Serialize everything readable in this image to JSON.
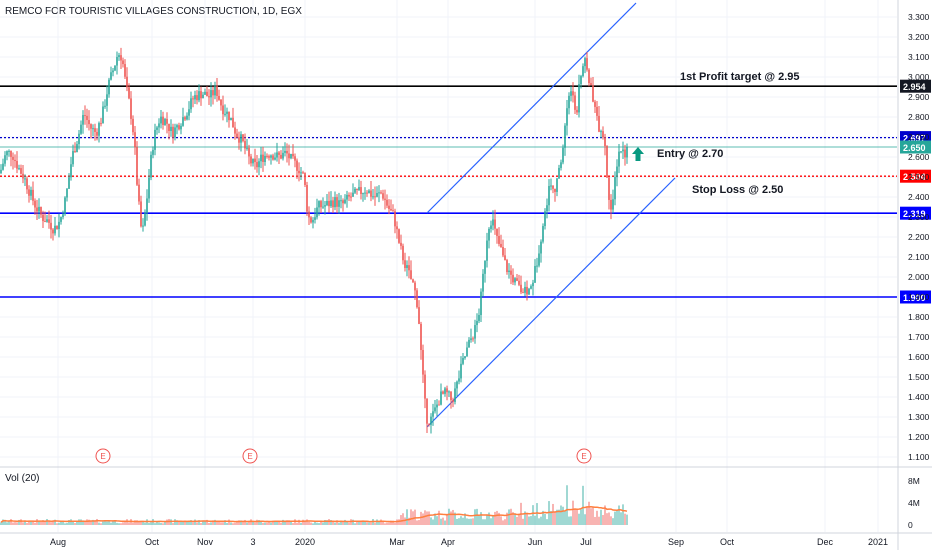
{
  "header": {
    "title": "REMCO FOR TOURISTIC VILLAGES CONSTRUCTION, 1D, EGX"
  },
  "colors": {
    "up": "#26a69a",
    "down": "#ef5350",
    "resistance_line": "#000000",
    "level_line": "#0000ff",
    "entry_dotted": "#0000cc",
    "stop_dotted": "#ff0000",
    "entry_thin": "#26a69a",
    "channel": "#2962ff",
    "vol_ma": "#ff7f3f",
    "arrow": "#089981"
  },
  "chart_data": {
    "type": "candlestick",
    "symbol": "REMCO FOR TOURISTIC VILLAGES CONSTRUCTION",
    "interval": "1D",
    "exchange": "EGX",
    "y_axis": {
      "range": [
        1.1,
        3.35
      ],
      "tick_labels": [
        "3.300",
        "3.200",
        "3.100",
        "3.000",
        "2.900",
        "2.800",
        "2.700",
        "2.600",
        "2.500",
        "2.400",
        "2.300",
        "2.200",
        "2.100",
        "2.000",
        "1.900",
        "1.800",
        "1.700",
        "1.600",
        "1.500",
        "1.400",
        "1.300",
        "1.200",
        "1.100"
      ]
    },
    "x_axis": {
      "tick_labels": [
        "Aug",
        "Oct",
        "Nov",
        "3",
        "2020",
        "Mar",
        "Apr",
        "Jun",
        "Jul",
        "Sep",
        "Oct",
        "Dec",
        "2021"
      ]
    },
    "horizontal_levels": [
      {
        "value": 2.954,
        "label": "2.954",
        "style": "solid-black"
      },
      {
        "value": 2.697,
        "label": "2.697",
        "style": "dotted-blue"
      },
      {
        "value": 2.65,
        "label": "2.650",
        "style": "thin-green"
      },
      {
        "value": 2.504,
        "label": "2.504",
        "style": "dotted-red"
      },
      {
        "value": 2.319,
        "label": "2.319",
        "style": "solid-blue"
      },
      {
        "value": 1.9,
        "label": "1.900",
        "style": "solid-blue"
      }
    ],
    "annotations": [
      {
        "text": "1st Profit target @ 2.95"
      },
      {
        "text": "Entry @ 2.70"
      },
      {
        "text": "Stop Loss @ 2.50"
      }
    ],
    "earnings_markers": [
      "E",
      "E",
      "E"
    ],
    "price_path": [
      [
        0,
        2.52
      ],
      [
        6,
        2.62
      ],
      [
        12,
        2.62
      ],
      [
        18,
        2.55
      ],
      [
        24,
        2.5
      ],
      [
        30,
        2.42
      ],
      [
        36,
        2.35
      ],
      [
        42,
        2.3
      ],
      [
        48,
        2.28
      ],
      [
        54,
        2.24
      ],
      [
        60,
        2.28
      ],
      [
        66,
        2.4
      ],
      [
        72,
        2.6
      ],
      [
        78,
        2.7
      ],
      [
        84,
        2.82
      ],
      [
        90,
        2.75
      ],
      [
        96,
        2.72
      ],
      [
        102,
        2.8
      ],
      [
        108,
        2.95
      ],
      [
        114,
        3.05
      ],
      [
        118,
        3.12
      ],
      [
        122,
        3.1
      ],
      [
        126,
        2.95
      ],
      [
        130,
        2.85
      ],
      [
        134,
        2.7
      ],
      [
        138,
        2.4
      ],
      [
        142,
        2.2
      ],
      [
        146,
        2.35
      ],
      [
        150,
        2.55
      ],
      [
        154,
        2.7
      ],
      [
        160,
        2.8
      ],
      [
        166,
        2.78
      ],
      [
        172,
        2.72
      ],
      [
        178,
        2.76
      ],
      [
        186,
        2.82
      ],
      [
        194,
        2.9
      ],
      [
        202,
        2.92
      ],
      [
        210,
        2.9
      ],
      [
        216,
        2.94
      ],
      [
        222,
        2.85
      ],
      [
        230,
        2.8
      ],
      [
        236,
        2.72
      ],
      [
        242,
        2.68
      ],
      [
        250,
        2.58
      ],
      [
        256,
        2.55
      ],
      [
        262,
        2.6
      ],
      [
        270,
        2.62
      ],
      [
        278,
        2.6
      ],
      [
        286,
        2.62
      ],
      [
        292,
        2.58
      ],
      [
        298,
        2.55
      ],
      [
        304,
        2.5
      ],
      [
        308,
        2.3
      ],
      [
        312,
        2.28
      ],
      [
        318,
        2.35
      ],
      [
        326,
        2.36
      ],
      [
        334,
        2.38
      ],
      [
        342,
        2.36
      ],
      [
        350,
        2.4
      ],
      [
        358,
        2.42
      ],
      [
        366,
        2.44
      ],
      [
        374,
        2.4
      ],
      [
        382,
        2.42
      ],
      [
        388,
        2.35
      ],
      [
        394,
        2.3
      ],
      [
        400,
        2.15
      ],
      [
        406,
        2.05
      ],
      [
        410,
        2.0
      ],
      [
        414,
        1.95
      ],
      [
        418,
        1.85
      ],
      [
        422,
        1.55
      ],
      [
        426,
        1.3
      ],
      [
        430,
        1.28
      ],
      [
        434,
        1.32
      ],
      [
        440,
        1.4
      ],
      [
        446,
        1.42
      ],
      [
        452,
        1.38
      ],
      [
        458,
        1.48
      ],
      [
        462,
        1.56
      ],
      [
        466,
        1.62
      ],
      [
        470,
        1.68
      ],
      [
        476,
        1.75
      ],
      [
        480,
        1.85
      ],
      [
        484,
        2.05
      ],
      [
        488,
        2.25
      ],
      [
        492,
        2.3
      ],
      [
        496,
        2.2
      ],
      [
        500,
        2.15
      ],
      [
        506,
        2.05
      ],
      [
        512,
        2.0
      ],
      [
        518,
        1.95
      ],
      [
        524,
        1.92
      ],
      [
        530,
        1.93
      ],
      [
        536,
        2.05
      ],
      [
        540,
        2.18
      ],
      [
        544,
        2.28
      ],
      [
        548,
        2.42
      ],
      [
        552,
        2.48
      ],
      [
        556,
        2.44
      ],
      [
        560,
        2.55
      ],
      [
        564,
        2.7
      ],
      [
        568,
        2.9
      ],
      [
        572,
        2.95
      ],
      [
        576,
        2.8
      ],
      [
        580,
        2.98
      ],
      [
        584,
        3.08
      ],
      [
        588,
        3.02
      ],
      [
        592,
        2.9
      ],
      [
        596,
        2.8
      ],
      [
        600,
        2.74
      ],
      [
        604,
        2.7
      ],
      [
        608,
        2.45
      ],
      [
        612,
        2.3
      ],
      [
        616,
        2.55
      ],
      [
        620,
        2.65
      ],
      [
        624,
        2.62
      ],
      [
        628,
        2.64
      ]
    ],
    "volume": {
      "label": "Vol (20)",
      "tick_labels": [
        "8M",
        "4M",
        "0"
      ],
      "range": [
        0,
        9000000
      ]
    }
  }
}
